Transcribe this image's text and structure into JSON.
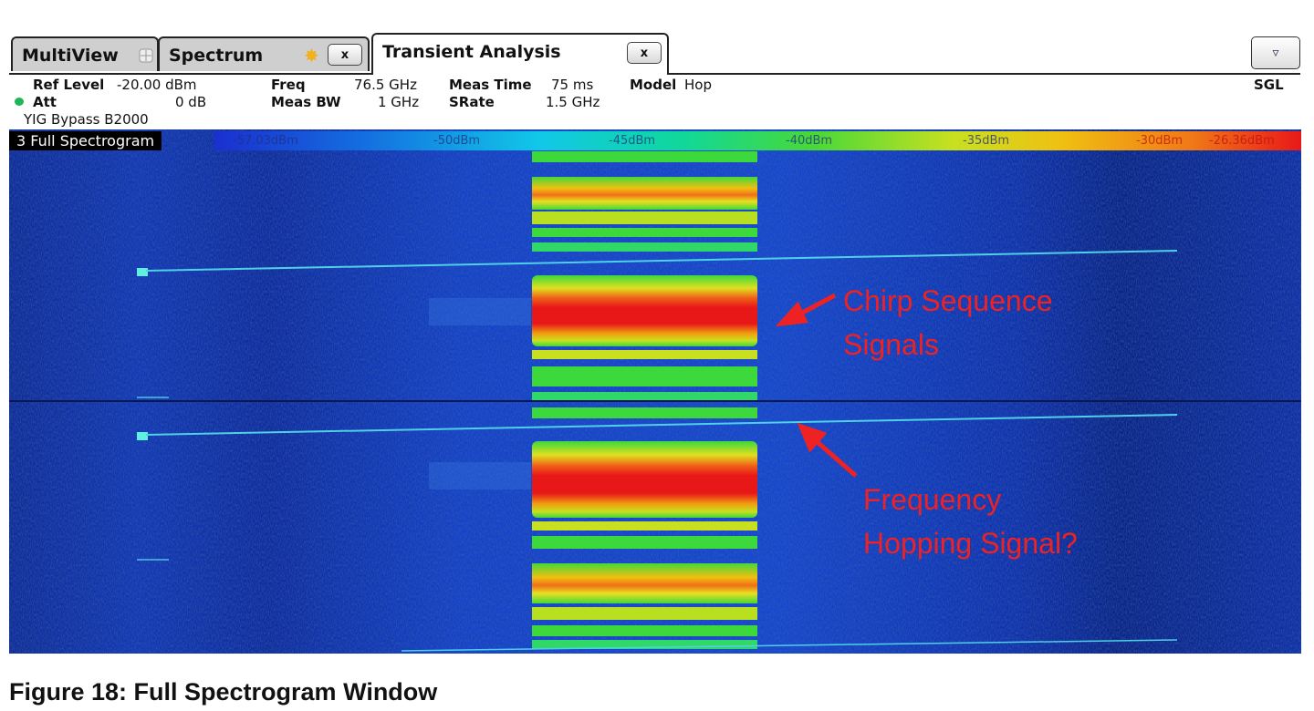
{
  "tabs": [
    {
      "label": "MultiView",
      "icon": "grid-icon"
    },
    {
      "label": "Spectrum",
      "icon": "sun-icon",
      "close": "x"
    },
    {
      "label": "Transient Analysis",
      "close": "x"
    }
  ],
  "dropdown_glyph": "▿",
  "params": {
    "ref_level_label": "Ref Level",
    "ref_level_value": "-20.00 dBm",
    "att_label": "Att",
    "att_value": "0 dB",
    "yig": "YIG Bypass B2000",
    "freq_label": "Freq",
    "freq_value": "76.5 GHz",
    "meas_bw_label": "Meas BW",
    "meas_bw_value": "1 GHz",
    "meas_time_label": "Meas Time",
    "meas_time_value": "75 ms",
    "srate_label": "SRate",
    "srate_value": "1.5 GHz",
    "model_label": "Model",
    "model_value": "Hop",
    "sweep_mode": "SGL"
  },
  "spectrogram": {
    "title": "3 Full Spectrogram",
    "colorbar_ticks": [
      "-57.03dBm",
      "-50dBm",
      "-45dBm",
      "-40dBm",
      "-35dBm",
      "-30dBm",
      "-26.36dBm"
    ]
  },
  "annotations": {
    "chirp_line1": "Chirp Sequence",
    "chirp_line2": "Signals",
    "hop_line1": "Frequency",
    "hop_line2": "Hopping Signal?"
  },
  "caption": "Figure 18: Full Spectrogram Window",
  "colors": {
    "background_blue": "#1138c8",
    "annotation_red": "#ee2222",
    "burst_hot": "#e81818",
    "burst_green": "#3cd83c"
  }
}
